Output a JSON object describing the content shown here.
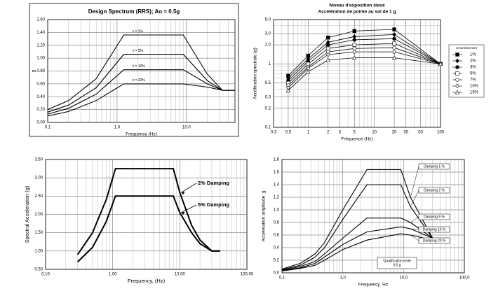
{
  "chart_data": [
    {
      "type": "line",
      "title": "Design Spectrum (RRS); Ao = 0.5g",
      "x_label": "Frequency (Hz)",
      "y_label": "g",
      "xlog": true,
      "xlim": [
        0.1,
        50
      ],
      "ylim": [
        0,
        1.6
      ],
      "xticks": [
        0.1,
        {
          "value": 1,
          "label": "1.0"
        },
        {
          "value": 10,
          "label": "10.0"
        }
      ],
      "yticks": [
        {
          "value": 0,
          "label": "0.00"
        },
        {
          "value": 0.2,
          "label": "0.20"
        },
        {
          "value": 0.4,
          "label": "0.40"
        },
        {
          "value": 0.6,
          "label": "0.60"
        },
        {
          "value": 0.8,
          "label": "0.80"
        },
        {
          "value": 1,
          "label": "1.00"
        },
        {
          "value": 1.2,
          "label": "1.20"
        },
        {
          "value": 1.4,
          "label": "1.40"
        },
        {
          "value": 1.6,
          "label": "1.60"
        }
      ],
      "grid": true,
      "x": [
        0.1,
        0.2,
        0.5,
        1.25,
        9,
        20,
        33,
        50
      ],
      "series": [
        {
          "name": "x = 2%",
          "color": "#000000",
          "values": [
            0.2,
            0.34,
            0.68,
            1.36,
            1.36,
            0.75,
            0.5,
            0.5
          ]
        },
        {
          "name": "x = 5%",
          "color": "#000000",
          "values": [
            0.16,
            0.27,
            0.54,
            1.06,
            1.06,
            0.65,
            0.5,
            0.5
          ]
        },
        {
          "name": "x = 10%",
          "color": "#000000",
          "values": [
            0.13,
            0.22,
            0.44,
            0.82,
            0.82,
            0.6,
            0.5,
            0.5
          ]
        },
        {
          "name": "x = 20%",
          "color": "#000000",
          "values": [
            0.1,
            0.17,
            0.34,
            0.6,
            0.6,
            0.55,
            0.5,
            0.5
          ]
        }
      ]
    },
    {
      "type": "line",
      "title": "Niveau d'exposition élevé",
      "subtitle": "Accélération de pointe au sol de 1 g",
      "x_label": "Fréquence (Hz)",
      "y_label": "Accélération spectrale (g)",
      "xlog": true,
      "ylog": true,
      "xlim": [
        0.3,
        100
      ],
      "ylim": [
        0.1,
        5
      ],
      "xticks": [
        0.3,
        0.5,
        1,
        2,
        3,
        5,
        10,
        20,
        30,
        50,
        100
      ],
      "yticks": [
        0.1,
        0.2,
        0.3,
        0.5,
        1,
        {
          "value": 2,
          "label": "2.0"
        },
        {
          "value": 3,
          "label": "3.0"
        },
        {
          "value": 5,
          "label": "5.0"
        }
      ],
      "grid": true,
      "legend_title": "Amortissement",
      "x": [
        0.5,
        1,
        2,
        5,
        20,
        100
      ],
      "series": [
        {
          "name": "1%",
          "color": "#000000",
          "marker": "square",
          "values": [
            0.65,
            1.35,
            2.6,
            3.3,
            3.5,
            1.0
          ]
        },
        {
          "name": "2%",
          "color": "#000000",
          "marker": "diamond",
          "values": [
            0.6,
            1.2,
            2.2,
            2.7,
            2.9,
            1.0
          ]
        },
        {
          "name": "3%",
          "color": "#000000",
          "marker": "circle",
          "values": [
            0.55,
            1.1,
            2.0,
            2.4,
            2.5,
            1.0
          ]
        },
        {
          "name": "5%",
          "color": "#000000",
          "marker": "square-open",
          "values": [
            0.5,
            1.0,
            1.75,
            2.0,
            2.1,
            1.0
          ]
        },
        {
          "name": "7%",
          "color": "#000000",
          "marker": "circle-open",
          "values": [
            0.46,
            0.9,
            1.55,
            1.75,
            1.8,
            1.0
          ]
        },
        {
          "name": "10%",
          "color": "#000000",
          "marker": "diamond-open",
          "values": [
            0.42,
            0.85,
            1.4,
            1.55,
            1.55,
            1.0
          ]
        },
        {
          "name": "15%",
          "color": "#000000",
          "marker": "triangle-open",
          "values": [
            0.38,
            0.75,
            1.15,
            1.25,
            1.25,
            1.0
          ]
        }
      ]
    },
    {
      "type": "line",
      "x_label": "Frequency, (Hz)",
      "y_label": "Spectral Acceleration (g)",
      "xlog": true,
      "xlim": [
        0.1,
        100
      ],
      "ylim": [
        0.5,
        3.5
      ],
      "xticks": [
        {
          "value": 0.1,
          "label": "0.10"
        },
        {
          "value": 1,
          "label": "1.00"
        },
        {
          "value": 10,
          "label": "10.00"
        },
        {
          "value": 100,
          "label": "100.00"
        }
      ],
      "yticks": [
        {
          "value": 0.5,
          "label": "0.50"
        },
        {
          "value": 1,
          "label": "1.00"
        },
        {
          "value": 1.5,
          "label": "1.50"
        },
        {
          "value": 2,
          "label": "2.00"
        },
        {
          "value": 2.5,
          "label": "2.50"
        },
        {
          "value": 3,
          "label": "3.00"
        },
        {
          "value": 3.5,
          "label": "3.50"
        }
      ],
      "grid": true,
      "x": [
        0.3,
        0.5,
        0.8,
        1.1,
        8,
        10,
        15,
        20,
        30,
        40
      ],
      "series": [
        {
          "name": "2% Damping",
          "color": "#000000",
          "values": [
            0.9,
            1.5,
            2.4,
            3.25,
            3.25,
            2.6,
            1.7,
            1.3,
            1.0,
            1.0
          ]
        },
        {
          "name": "5% Damping",
          "color": "#000000",
          "values": [
            0.7,
            1.1,
            1.8,
            2.5,
            2.5,
            2.05,
            1.5,
            1.2,
            1.0,
            1.0
          ]
        }
      ]
    },
    {
      "type": "line",
      "x_label": "Frequency  Hz",
      "y_label": "Acceleration amplitude  g",
      "xlog": true,
      "xlim": [
        0.1,
        100
      ],
      "ylim": [
        0,
        1.8
      ],
      "xticks": [
        {
          "value": 0.1,
          "label": "0,1"
        },
        {
          "value": 1,
          "label": "1,0"
        },
        {
          "value": 10,
          "label": "10,0"
        },
        {
          "value": 100,
          "label": "100,0"
        }
      ],
      "yticks": [
        {
          "value": 0,
          "label": "0,0"
        },
        {
          "value": 0.2,
          "label": "0,2"
        },
        {
          "value": 0.4,
          "label": "0,4"
        },
        {
          "value": 0.6,
          "label": "0,6"
        },
        {
          "value": 0.8,
          "label": "0,8"
        },
        {
          "value": 1,
          "label": "1,0"
        },
        {
          "value": 1.2,
          "label": "1,2"
        },
        {
          "value": 1.4,
          "label": "1,4"
        },
        {
          "value": 1.6,
          "label": "1,6"
        },
        {
          "value": 1.8,
          "label": "1,8"
        }
      ],
      "grid": true,
      "annotation": [
        "Qualification level",
        "0,5 g"
      ],
      "x": [
        0.1,
        0.2,
        0.35,
        0.5,
        1,
        2.5,
        9,
        13,
        30,
        35
      ],
      "series": [
        {
          "name": "Damping 1 %",
          "color": "#000000",
          "values": [
            0.06,
            0.15,
            0.3,
            0.48,
            1.0,
            1.64,
            1.64,
            1.2,
            0.55,
            0.5
          ]
        },
        {
          "name": "Damping 2 %",
          "color": "#000000",
          "values": [
            0.05,
            0.12,
            0.25,
            0.4,
            0.85,
            1.4,
            1.4,
            1.05,
            0.55,
            0.5
          ]
        },
        {
          "name": "Damping 5 %",
          "color": "#000000",
          "values": [
            0.04,
            0.1,
            0.18,
            0.3,
            0.55,
            0.87,
            0.87,
            0.8,
            0.55,
            0.5
          ]
        },
        {
          "name": "Damping 10 %",
          "color": "#000000",
          "values": [
            0.035,
            0.08,
            0.15,
            0.25,
            0.45,
            0.65,
            0.73,
            0.7,
            0.55,
            0.5
          ]
        },
        {
          "name": "Damping 20 %",
          "color": "#000000",
          "values": [
            0.03,
            0.07,
            0.12,
            0.2,
            0.37,
            0.52,
            0.62,
            0.6,
            0.52,
            0.5
          ]
        }
      ]
    }
  ]
}
